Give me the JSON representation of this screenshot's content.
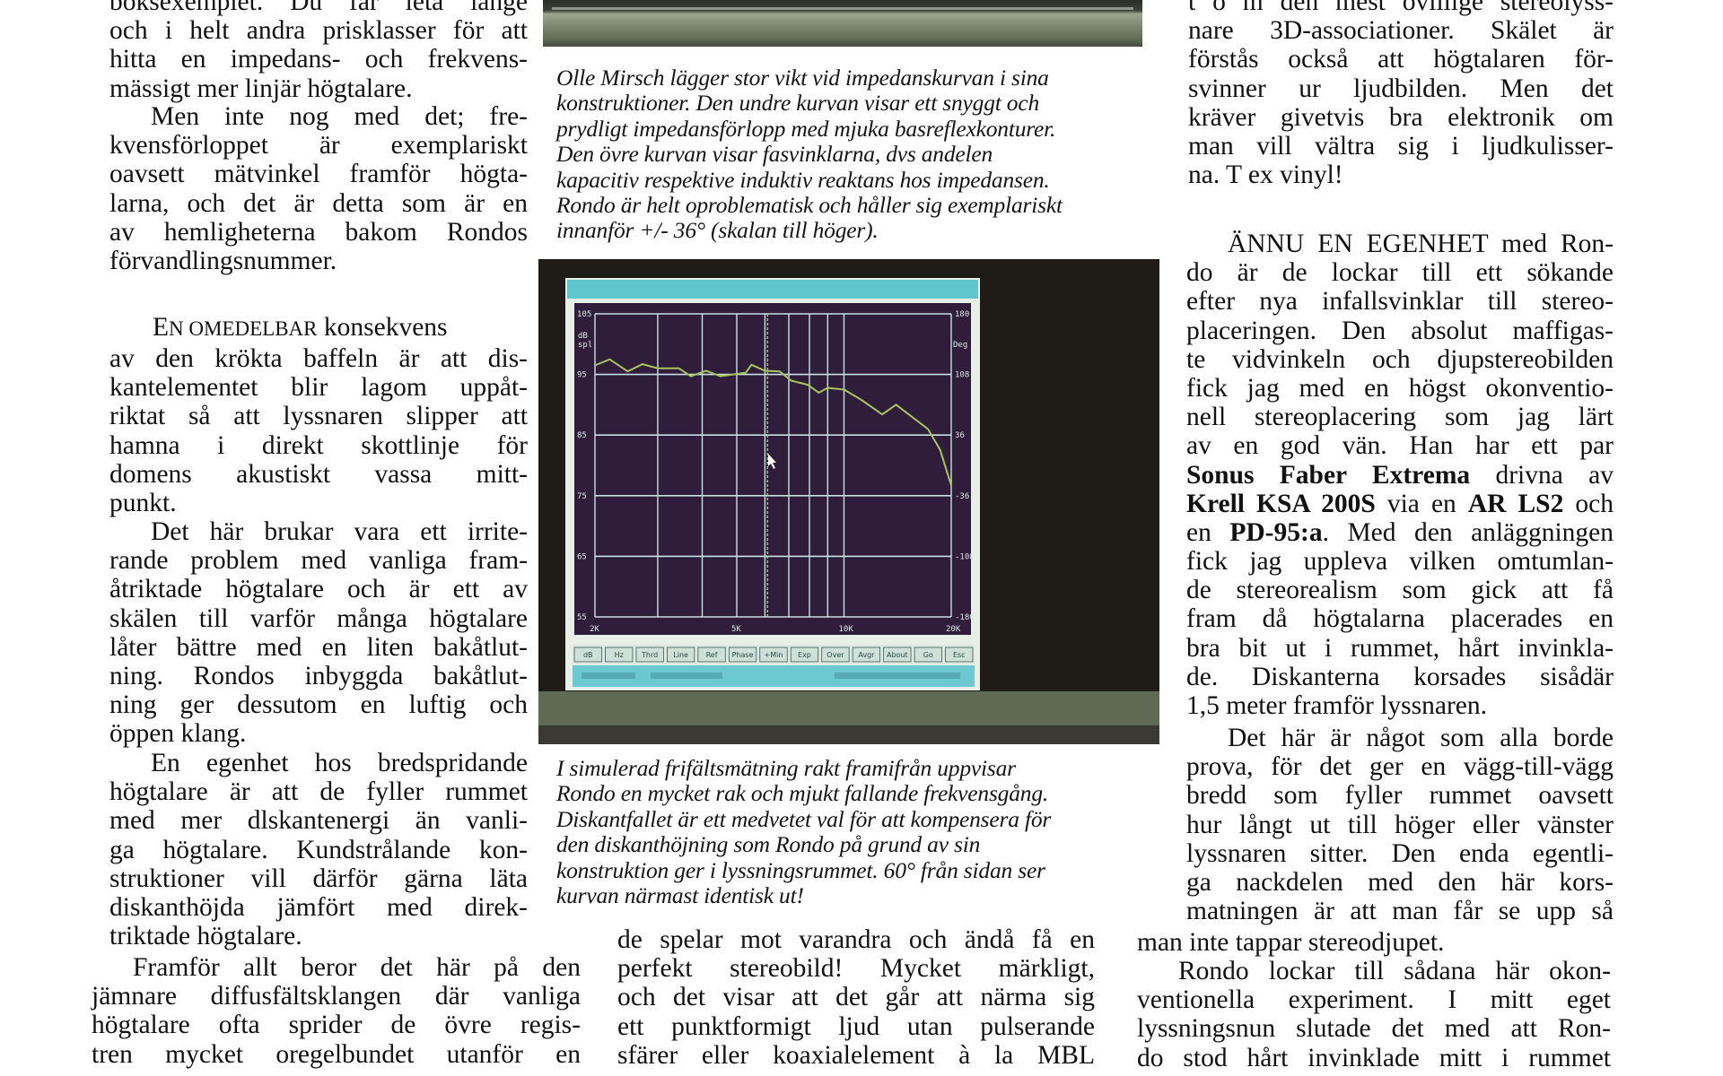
{
  "left_column": {
    "p1": [
      "boksexemplet. Du får leta länge",
      "och i helt andra prisklasser för att",
      "hitta en impedans- och frekvens-",
      "mässigt mer linjär högtalare."
    ],
    "p2": [
      "Men inte nog med det; fre-",
      "kvensförloppet är exemplariskt",
      "oavsett mätvinkel framför högta-",
      "larna, och det är detta som är en",
      "av hemligheterna bakom Rondos",
      "förvandlingsnummer."
    ],
    "heading": {
      "initial": "E",
      "smallcaps": "N OMEDELBAR",
      "rest": " konsekvens"
    },
    "p3": [
      "av den krökta baffeln är att dis-",
      "kantelementet blir lagom uppåt-",
      "riktat så att lyssnaren slipper att",
      "hamna i direkt skottlinje för",
      "domens akustiskt vassa mitt-",
      "punkt."
    ],
    "p4": [
      "Det här brukar vara ett irrite-",
      "rande problem med vanliga fram-",
      "åtriktade högtalare och är ett av",
      "skälen till varför många högtalare",
      "låter bättre med en liten bakåtlut-",
      "ning. Rondos inbyggda bakåtlut-",
      "ning ger dessutom en luftig och",
      "öppen klang."
    ],
    "p5": [
      "En egenhet hos bredspridande",
      "högtalare är att de fyller rummet",
      "med mer dlskantenergi än vanli-",
      "ga högtalare. Kundstrålande kon-",
      "struktioner vill därför gärna läta",
      "diskanthöjda jämfört med direk-",
      "triktade högtalare."
    ],
    "p6": [
      "Framför allt beror det här på den",
      "jämnare diffusfältsklangen där vanliga",
      "högtalare ofta sprider de övre regis-",
      "tren mycket oregelbundet utanför en"
    ]
  },
  "captions": {
    "impedance": [
      "Olle Mirsch lägger stor vikt vid impedanskurvan i sina",
      "konstruktioner. Den undre kurvan visar ett snyggt och",
      "prydligt impedansförlopp med mjuka basreflexkonturer.",
      "Den övre kurvan visar fasvinklarna, dvs andelen",
      "kapacitiv respektive induktiv reaktans hos impedansen.",
      "Rondo är helt oproblematisk och håller sig exemplariskt",
      "innanför +/- 36° (skalan till höger)."
    ],
    "frequency": [
      "I simulerad frifältsmätning rakt framifrån uppvisar",
      "Rondo en mycket rak och mjukt fallande frekvensgång.",
      "Diskantfallet är ett medvetet val för att kompensera för",
      "den diskanthöjning som Rondo på grund av sin",
      "konstruktion ger i lyssningsrummet. 60° från sidan ser",
      "kurvan närmast identisk ut!"
    ]
  },
  "middle_column": {
    "p1": [
      "de spelar mot varandra och ändå få en",
      "perfekt stereobild! Mycket märkligt,",
      "och det visar att det går att närma sig",
      "ett punktformigt ljud utan pulserande",
      "sfärer eller koaxialelement à la MBL"
    ]
  },
  "right_column": {
    "p1": [
      "t o m den mest ovillige stereolyss-",
      "nare 3D-associationer. Skälet är",
      "förstås också att högtalaren för-",
      "svinner ur ljudbilden. Men det",
      "kräver givetvis bra elektronik om",
      "man vill vältra sig i ljudkulisser-",
      "na. T ex vinyl!"
    ],
    "p2": [
      "ÄNNU EN EGENHET med Ron-",
      "do är de lockar till ett sökande",
      "efter nya infallsvinklar till stereo-",
      "placeringen. Den absolut maffigas-",
      "te vidvinkeln och djupstereobilden",
      "fick jag med en högst okonventio-",
      "nell stereoplacering som jag lärt",
      "av en god vän. Han har ett par",
      [
        {
          "text": "Sonus Faber Extrema",
          "bold": true
        },
        {
          "text": " drivna av"
        }
      ],
      [
        {
          "text": "Krell KSA 200S",
          "bold": true
        },
        {
          "text": " via en "
        },
        {
          "text": "AR LS2",
          "bold": true
        },
        {
          "text": " och"
        }
      ],
      [
        {
          "text": "en "
        },
        {
          "text": "PD-95:a",
          "bold": true
        },
        {
          "text": ". Med den anläggningen"
        }
      ],
      "fick jag uppleva vilken omtumlan-",
      "de stereorealism som gick att få",
      "fram då högtalarna placerades en",
      "bra bit ut i rummet, hårt invinkla-",
      "de. Diskanterna korsades sisådär",
      "1,5 meter framför lyssnaren."
    ],
    "p3": [
      "Det här är något som alla borde",
      "prova, för det ger en vägg-till-vägg",
      "bredd som fyller rummet oavsett",
      "hur långt ut till höger eller vänster",
      "lyssnaren sitter. Den enda egentli-",
      "ga nackdelen med den här kors-",
      "matningen är att man får se upp så"
    ],
    "p3_end": [
      "man inte tappar stereodjupet."
    ],
    "p4": [
      "Rondo lockar till sådana här okon-",
      "ventionella experiment. I mitt eget",
      "lyssningsnun slutade det med att Ron-",
      "do stod hårt invinklade mitt i rummet"
    ]
  },
  "figure": {
    "left_axis_unit": [
      "dB",
      "spl"
    ],
    "right_axis_unit": "Deg",
    "left_ticks": [
      "105",
      "95",
      "85",
      "75",
      "65",
      "55"
    ],
    "right_ticks": [
      "180",
      "108",
      "36",
      "-36",
      "-108",
      "-180"
    ],
    "x_ticks": [
      "2K",
      "5K",
      "10K",
      "20K"
    ],
    "x_range_hz": [
      2000,
      20000
    ],
    "y_range_db": [
      55,
      105
    ],
    "x_scale": "log",
    "cursor_hz": 6100,
    "buttons": [
      "dB",
      "Hz",
      "Thrd",
      "Line",
      "Ref",
      "Phase",
      "+Min",
      "Exp",
      "Over",
      "Avgr",
      "About",
      "Go",
      "Esc"
    ],
    "curve": [
      [
        2000,
        96.5
      ],
      [
        2200,
        97.5
      ],
      [
        2470,
        95.5
      ],
      [
        2720,
        96.7
      ],
      [
        3000,
        96
      ],
      [
        3440,
        96
      ],
      [
        3720,
        94.7
      ],
      [
        4100,
        95.6
      ],
      [
        4500,
        94.7
      ],
      [
        5300,
        95.3
      ],
      [
        5500,
        96.6
      ],
      [
        6000,
        95.6
      ],
      [
        6600,
        95.5
      ],
      [
        7100,
        94
      ],
      [
        7900,
        93.3
      ],
      [
        8500,
        92
      ],
      [
        9000,
        92.8
      ],
      [
        10000,
        92.5
      ],
      [
        11200,
        90.8
      ],
      [
        12800,
        88.4
      ],
      [
        14000,
        90
      ],
      [
        15200,
        88.4
      ],
      [
        17200,
        86
      ],
      [
        18600,
        82.6
      ],
      [
        20000,
        76.7
      ]
    ],
    "colors": {
      "screen_bg": "#2f1d3b",
      "grid": "#c9dfe6",
      "curve": "#a9c45a",
      "cursor": "#d8d070",
      "title_bar": "#5ec6cc",
      "frame": "#1f1b17"
    }
  }
}
